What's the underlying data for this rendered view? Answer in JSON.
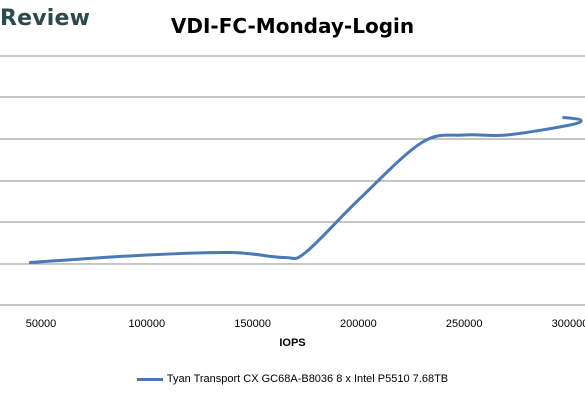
{
  "brand": {
    "text": "Review"
  },
  "colors": {
    "series": "#4a7ab5",
    "grid": "#8c8c8c",
    "brand": "#2b4a4e"
  },
  "chart_data": {
    "type": "line",
    "title": "VDI-FC-Monday-Login",
    "xlabel": "IOPS",
    "ylabel": "",
    "x_ticks": [
      "50000",
      "100000",
      "150000",
      "200000",
      "250000",
      "300000"
    ],
    "grid": "horizontal",
    "legend_position": "bottom",
    "series": [
      {
        "name": "Tyan Transport CX GC68A-B8036 8 x Intel P5510 7.68TB",
        "x": [
          45000,
          100000,
          140000,
          165000,
          175000,
          200000,
          230000,
          250000,
          270000,
          300000,
          305000,
          297000
        ],
        "y": [
          0.17,
          0.2,
          0.21,
          0.19,
          0.21,
          0.42,
          0.65,
          0.68,
          0.68,
          0.72,
          0.74,
          0.75
        ]
      }
    ]
  }
}
